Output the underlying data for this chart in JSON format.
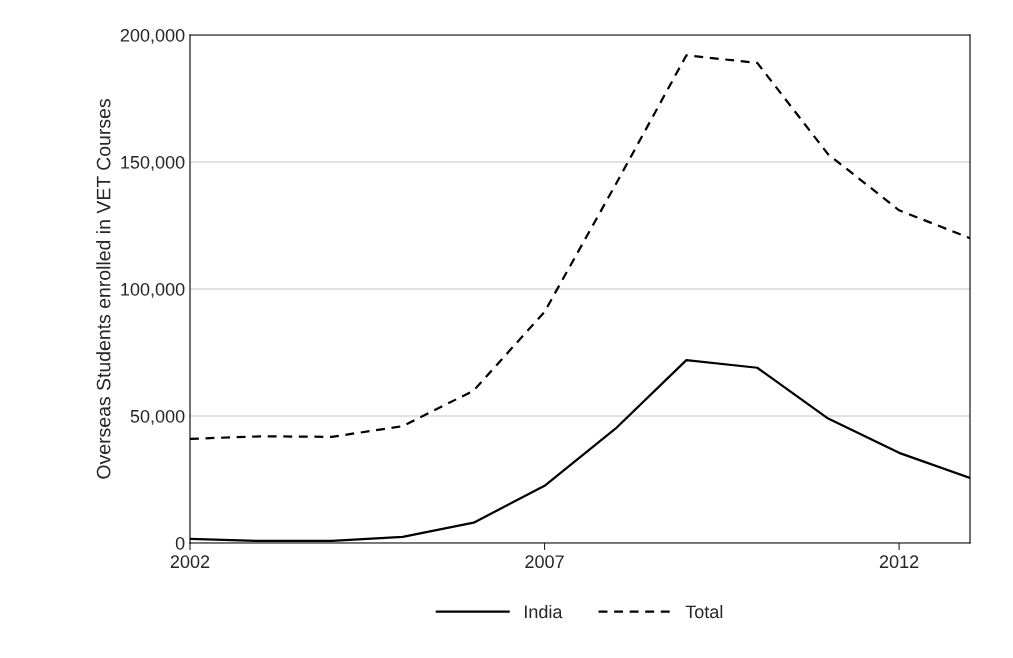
{
  "chart_data": {
    "type": "line",
    "ylabel": "Overseas Students enrolled in VET Courses",
    "x": [
      2002,
      2003,
      2004,
      2005,
      2006,
      2007,
      2008,
      2009,
      2010,
      2011,
      2012,
      2013
    ],
    "series": [
      {
        "name": "India",
        "color": "#000000",
        "line_style": "solid",
        "values": [
          1600,
          800,
          800,
          2400,
          8000,
          22500,
          45000,
          72000,
          69000,
          49000,
          35500,
          25600
        ]
      },
      {
        "name": "Total",
        "color": "#000000",
        "line_style": "dashed",
        "values": [
          41000,
          42000,
          41800,
          46000,
          60000,
          91000,
          141000,
          192000,
          189000,
          153000,
          131000,
          120000
        ]
      }
    ],
    "xlim": [
      2002,
      2013
    ],
    "xticks": [
      2002,
      2007,
      2012
    ],
    "ylim": [
      0,
      200000
    ],
    "yticks": [
      {
        "value": 0,
        "label": "0"
      },
      {
        "value": 50000,
        "label": "50,000"
      },
      {
        "value": 100000,
        "label": "100,000"
      },
      {
        "value": 150000,
        "label": "150,000"
      },
      {
        "value": 200000,
        "label": "200,000"
      }
    ],
    "grid": "y",
    "legend": "bottom"
  }
}
